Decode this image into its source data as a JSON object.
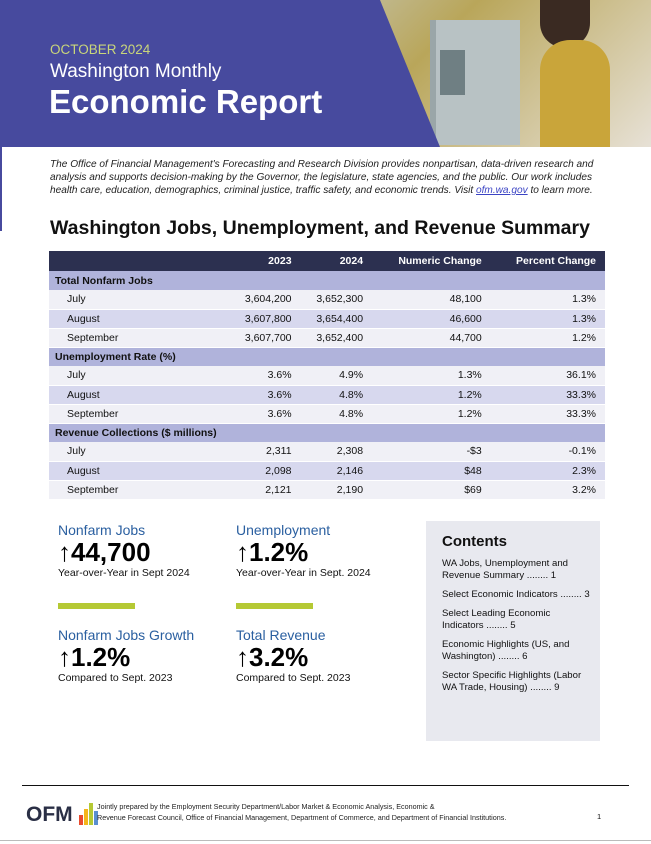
{
  "header": {
    "month": "OCTOBER 2024",
    "subtitle": "Washington Monthly",
    "title": "Economic Report",
    "photo": "person-using-atm"
  },
  "intro": {
    "text": "The Office of Financial Management's Forecasting and Research Division provides nonpartisan, data-driven research and analysis and supports decision-making by the Governor, the legislature, state agencies, and the public. Our work includes health care, education, demographics, criminal justice, traffic safety, and economic trends. Visit ",
    "link": "ofm.wa.gov",
    "text_after": " to learn more."
  },
  "summary": {
    "title": "Washington Jobs, Unemployment, and Revenue Summary",
    "columns": [
      "",
      "2023",
      "2024",
      "Numeric Change",
      "Percent Change"
    ],
    "groups": [
      {
        "label": "Total Nonfarm Jobs",
        "rows": [
          [
            "July",
            "3,604,200",
            "3,652,300",
            "48,100",
            "1.3%"
          ],
          [
            "August",
            "3,607,800",
            "3,654,400",
            "46,600",
            "1.3%"
          ],
          [
            "September",
            "3,607,700",
            "3,652,400",
            "44,700",
            "1.2%"
          ]
        ]
      },
      {
        "label": "Unemployment Rate (%)",
        "rows": [
          [
            "July",
            "3.6%",
            "4.9%",
            "1.3%",
            "36.1%"
          ],
          [
            "August",
            "3.6%",
            "4.8%",
            "1.2%",
            "33.3%"
          ],
          [
            "September",
            "3.6%",
            "4.8%",
            "1.2%",
            "33.3%"
          ]
        ]
      },
      {
        "label": "Revenue Collections ($ millions)",
        "rows": [
          [
            "July",
            "2,311",
            "2,308",
            "-$3",
            "-0.1%"
          ],
          [
            "August",
            "2,098",
            "2,146",
            "$48",
            "2.3%"
          ],
          [
            "September",
            "2,121",
            "2,190",
            "$69",
            "3.2%"
          ]
        ]
      }
    ]
  },
  "stats": [
    {
      "label": "Nonfarm Jobs",
      "value": "↑44,700",
      "caption": "Year-over-Year in Sept 2024"
    },
    {
      "label": "Unemployment",
      "value": "↑1.2%",
      "caption": "Year-over-Year in Sept. 2024"
    },
    {
      "label": "Nonfarm Jobs Growth",
      "value": "↑1.2%",
      "caption": "Compared to Sept. 2023"
    },
    {
      "label": "Total Revenue",
      "value": "↑3.2%",
      "caption": "Compared to Sept. 2023"
    }
  ],
  "contents": {
    "title": "Contents",
    "items": [
      {
        "label": "WA Jobs, Unemployment and Revenue Summary",
        "page": "1"
      },
      {
        "label": "Select Economic Indicators",
        "page": "3"
      },
      {
        "label": "Select Leading Economic Indicators",
        "page": "5"
      },
      {
        "label": "Economic Highlights (US, and Washington)",
        "page": "6"
      },
      {
        "label": "Sector Specific Highlights (Labor WA Trade, Housing)",
        "page": "9"
      }
    ]
  },
  "footer": {
    "logo": "OFM",
    "line1": "Jointly prepared by the Employment Security Department/Labor Market & Economic Analysis, Economic &",
    "line2": "Revenue Forecast Council, Office of Financial Management, Department of Commerce, and Department of Financial Institutions.",
    "page": "1"
  },
  "colors": {
    "brand_purple": "#474a9e",
    "accent_green": "#b5c934",
    "table_header": "#2c3050",
    "group_row": "#b0b3db"
  }
}
